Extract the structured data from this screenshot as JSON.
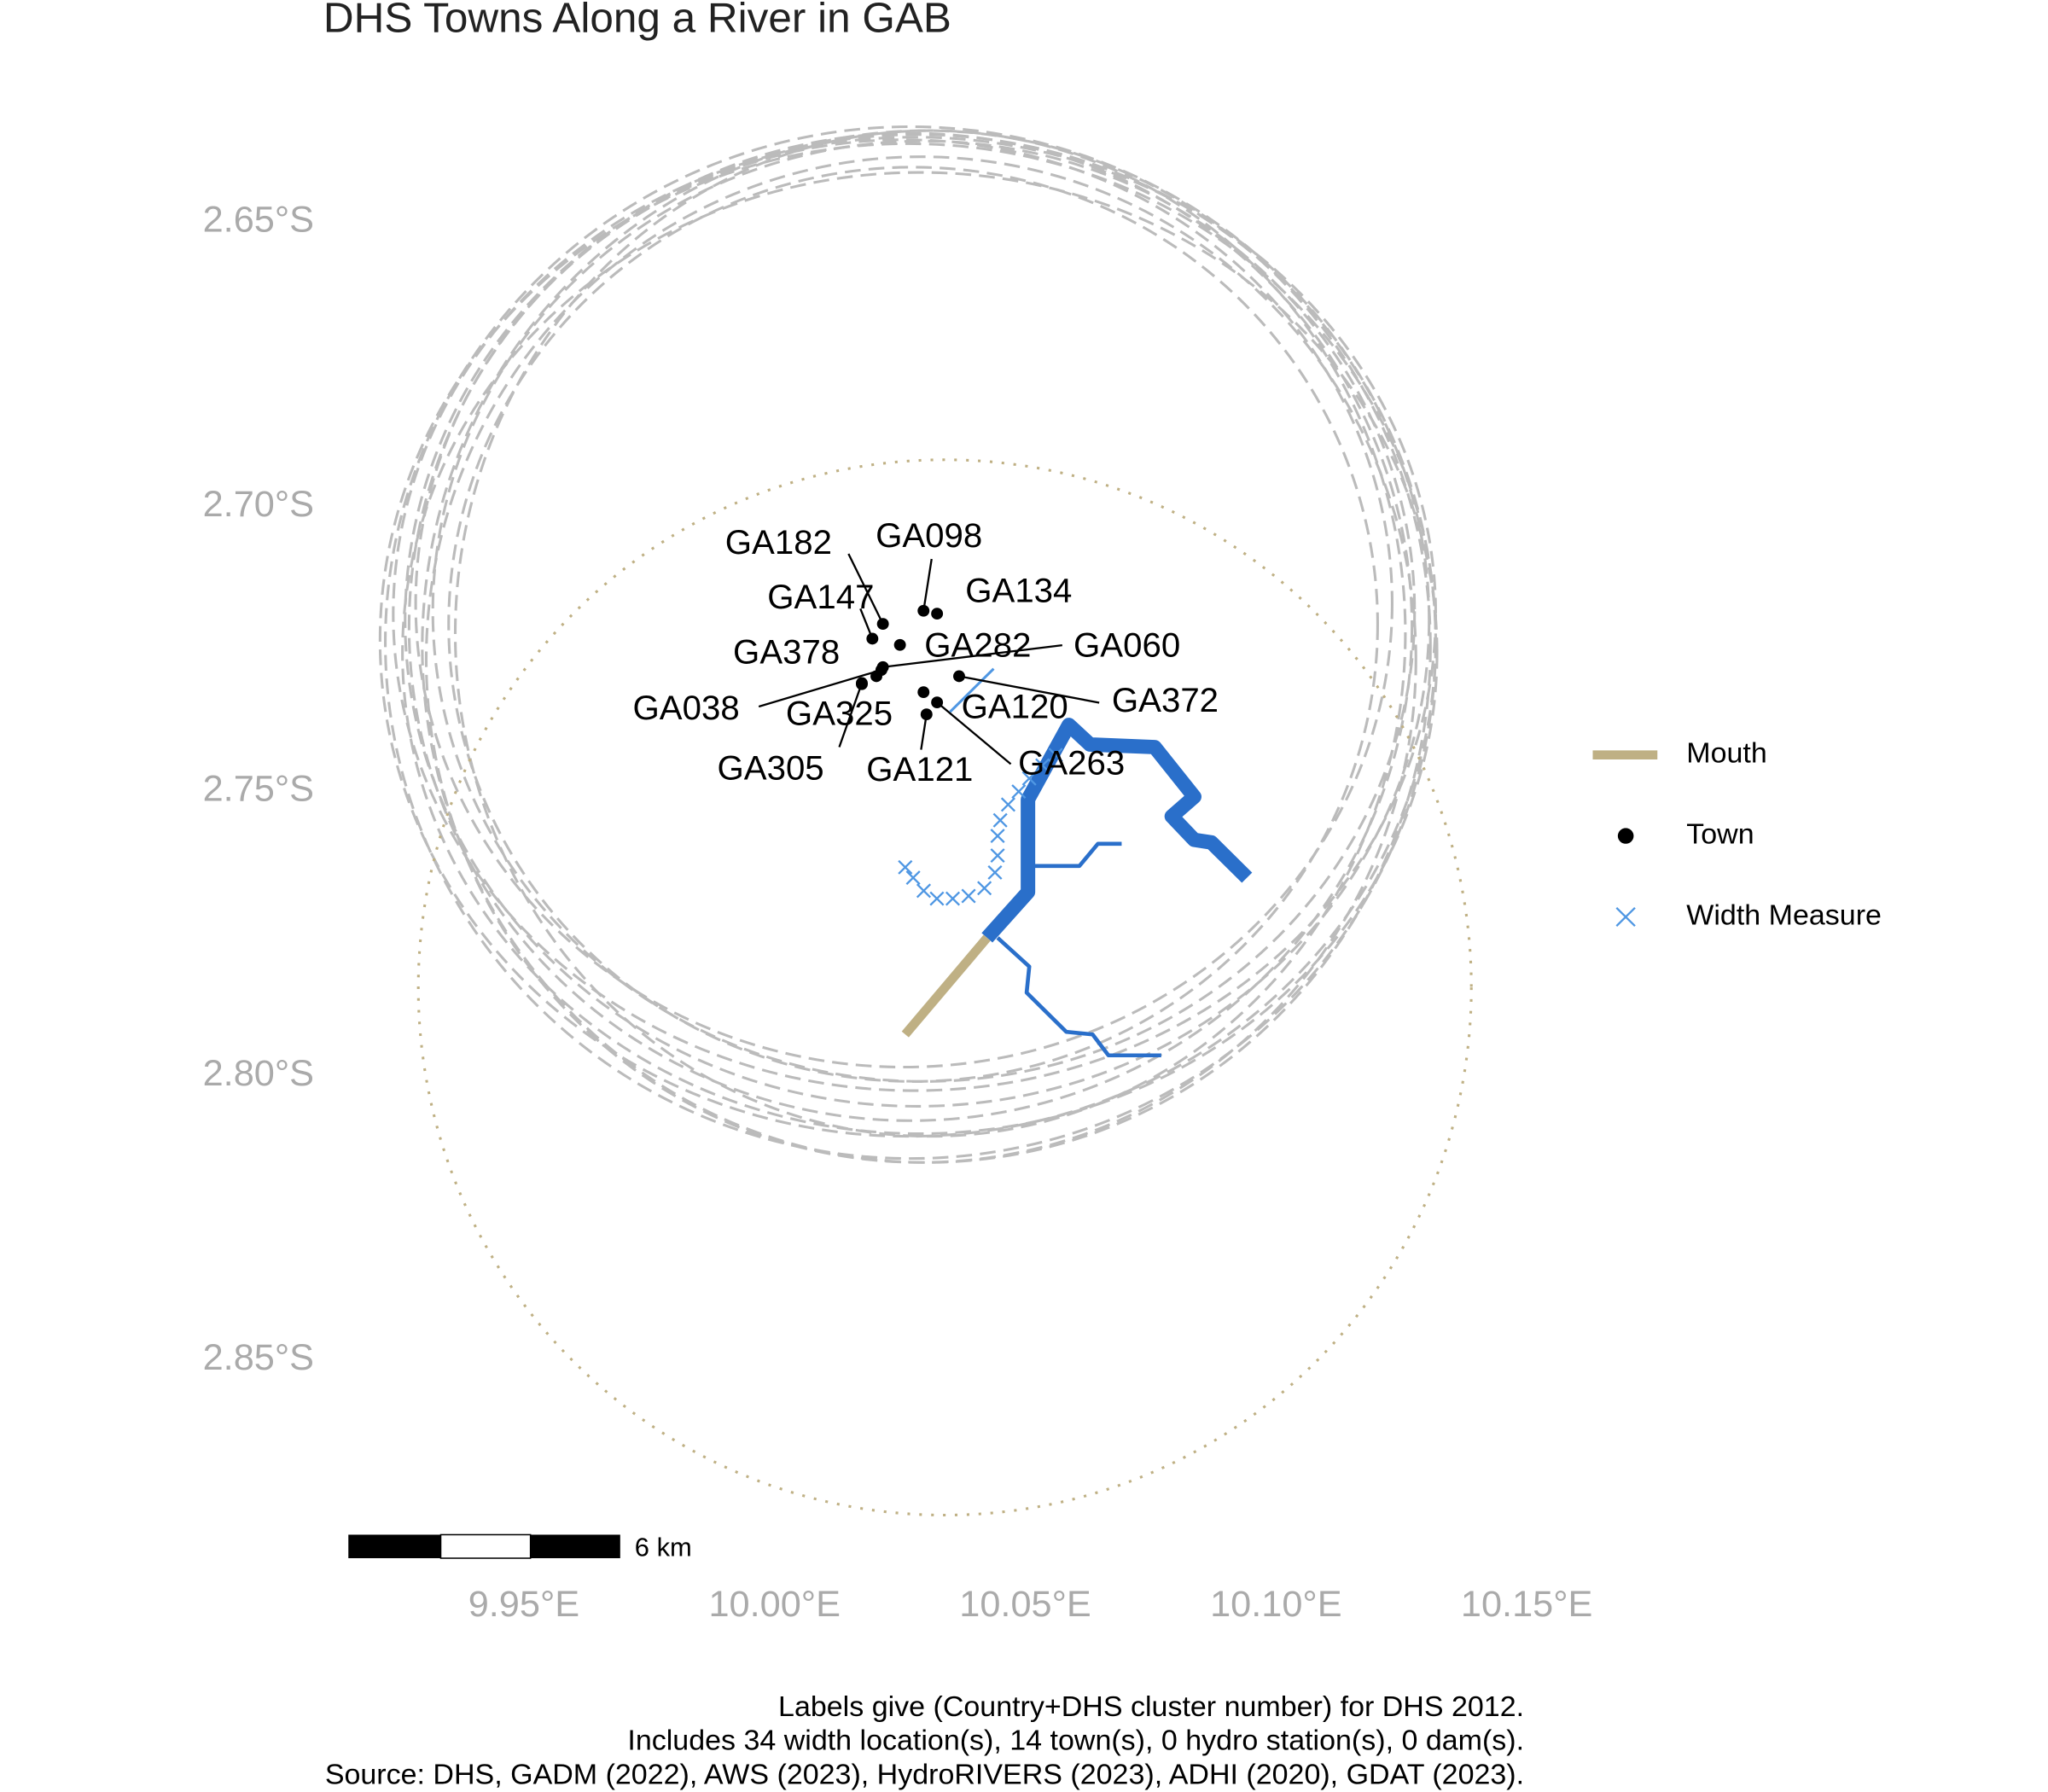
{
  "chart_data": {
    "type": "map",
    "title": "DHS Towns Along a River in GAB",
    "xlim": [
      9.91,
      10.18
    ],
    "ylim": [
      -2.63,
      -2.88
    ],
    "xticks": [
      {
        "value": 9.95,
        "label": "9.95°E"
      },
      {
        "value": 10.0,
        "label": "10.00°E"
      },
      {
        "value": 10.05,
        "label": "10.05°E"
      },
      {
        "value": 10.1,
        "label": "10.10°E"
      },
      {
        "value": 10.15,
        "label": "10.15°E"
      }
    ],
    "yticks": [
      {
        "value": -2.65,
        "label": "2.65°S"
      },
      {
        "value": -2.7,
        "label": "2.70°S"
      },
      {
        "value": -2.75,
        "label": "2.75°S"
      },
      {
        "value": -2.8,
        "label": "2.80°S"
      },
      {
        "value": -2.85,
        "label": "2.85°S"
      }
    ],
    "towns": {
      "names": [
        "GA182",
        "GA147",
        "GA098",
        "GA134",
        "GA282",
        "GA378",
        "GA038",
        "GA060",
        "GA325",
        "GA372",
        "GA120",
        "GA263",
        "GA121",
        "GA305"
      ],
      "lon": [
        10.0216,
        10.0195,
        10.0297,
        10.0324,
        10.025,
        10.0203,
        10.0213,
        10.0216,
        10.0174,
        10.0368,
        10.0297,
        10.0324,
        10.0303,
        10.0174
      ],
      "lat": [
        -2.7206,
        -2.7232,
        -2.7183,
        -2.7188,
        -2.7243,
        -2.7298,
        -2.7287,
        -2.7282,
        -2.7312,
        -2.7298,
        -2.7326,
        -2.7344,
        -2.7365,
        -2.731
      ],
      "color": "#000000"
    },
    "legend": [
      {
        "name": "Mouth",
        "color": "#bfb084"
      },
      {
        "name": "Town",
        "color": "#000000"
      },
      {
        "name": "Width Measure",
        "color": "#4f97e3"
      }
    ],
    "scale_bar": "6 km",
    "caption": [
      "Labels give (Country+DHS cluster number) for DHS 2012.",
      "Includes 34 width location(s), 14 town(s), 0 hydro station(s), 0 dam(s).",
      "Source: DHS, GADM (2022), AWS (2023), HydroRIVERS (2023), ADHI (2020), GDAT (2023)."
    ]
  }
}
